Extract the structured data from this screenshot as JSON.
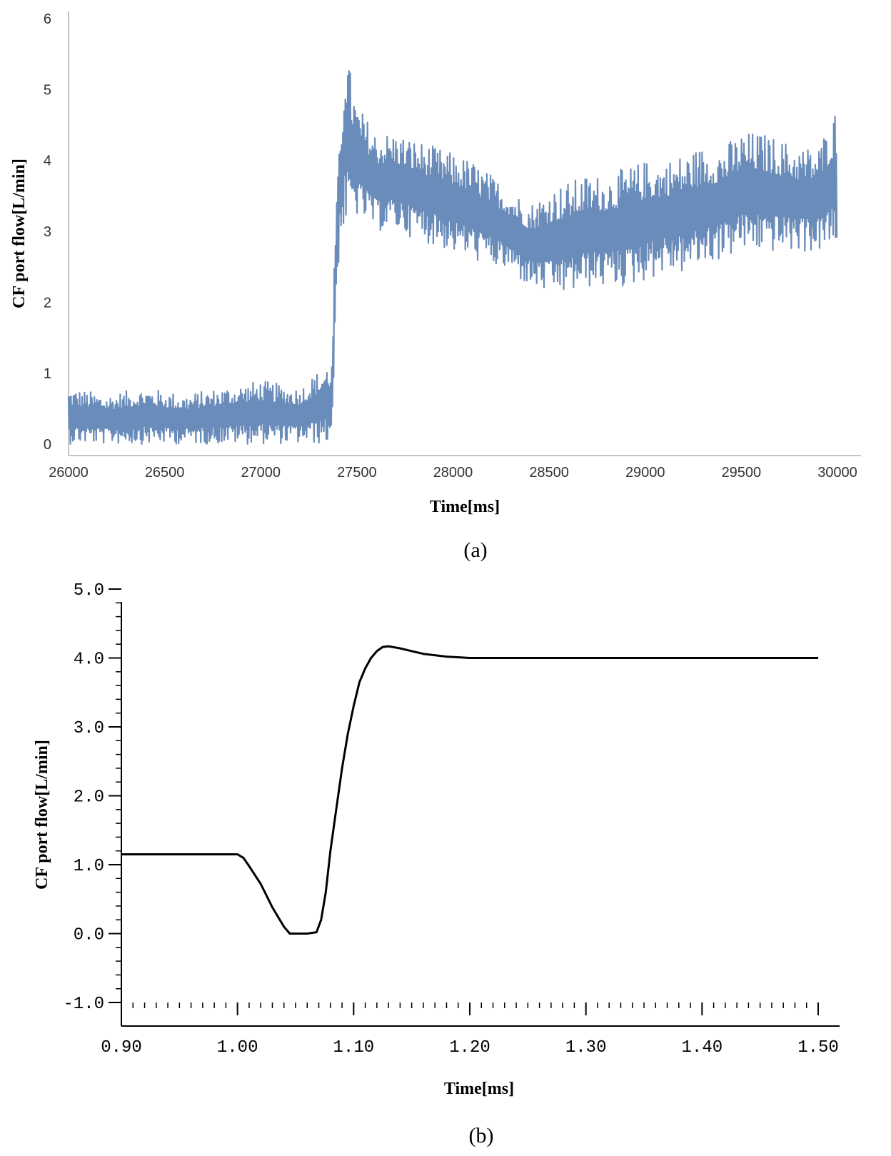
{
  "chart_data": [
    {
      "panel": "a",
      "type": "line",
      "caption": "(a)",
      "xlabel": "Time[ms]",
      "ylabel": "CF port flow[L/min]",
      "xlim": [
        26000,
        30000
      ],
      "ylim": [
        0,
        6
      ],
      "xticks": [
        26000,
        26500,
        27000,
        27500,
        28000,
        28500,
        29000,
        29500,
        30000
      ],
      "yticks": [
        0,
        1,
        2,
        3,
        4,
        5,
        6
      ],
      "grid": false,
      "color": "#6a8cba",
      "series": [
        {
          "description_points": "envelope of a densely oscillating signal; low = lower edge, high = upper edge",
          "x": [
            26000,
            26200,
            26400,
            26600,
            26800,
            27000,
            27200,
            27370,
            27390,
            27410,
            27440,
            27470,
            27500,
            27600,
            27700,
            27800,
            27900,
            28000,
            28100,
            28200,
            28300,
            28400,
            28500,
            28600,
            28700,
            28800,
            28900,
            29000,
            29100,
            29200,
            29300,
            29400,
            29500,
            29600,
            29700,
            29800,
            29900,
            30000
          ],
          "low": [
            0,
            0,
            0,
            0,
            0,
            0,
            0,
            0,
            1.8,
            2.8,
            3.0,
            3.1,
            3.2,
            3.0,
            3.0,
            2.9,
            2.8,
            2.7,
            2.6,
            2.5,
            2.4,
            2.2,
            2.1,
            2.1,
            2.2,
            2.2,
            2.2,
            2.3,
            2.4,
            2.4,
            2.5,
            2.6,
            2.7,
            2.7,
            2.7,
            2.7,
            2.7,
            2.7
          ],
          "high": [
            0.8,
            0.7,
            0.8,
            0.7,
            0.8,
            0.9,
            0.8,
            1.2,
            3.3,
            4.2,
            5.7,
            5.2,
            4.8,
            4.4,
            4.4,
            4.3,
            4.2,
            4.1,
            4.0,
            3.8,
            3.6,
            3.4,
            3.6,
            3.7,
            3.8,
            3.8,
            3.9,
            4.0,
            4.0,
            4.1,
            4.2,
            4.2,
            4.4,
            4.4,
            4.3,
            4.2,
            4.2,
            4.8
          ]
        }
      ]
    },
    {
      "panel": "b",
      "type": "line",
      "caption": "(b)",
      "xlabel": "Time[ms]",
      "ylabel": "CF port flow[L/min]",
      "xlim": [
        0.9,
        1.5
      ],
      "ylim": [
        -1.0,
        5.0
      ],
      "xticks": [
        "0.90",
        "1.00",
        "1.10",
        "1.20",
        "1.30",
        "1.40",
        "1.50"
      ],
      "yticks": [
        "-1.0",
        "0.0",
        "1.0",
        "2.0",
        "3.0",
        "4.0",
        "5.0"
      ],
      "grid": false,
      "color": "#000000",
      "series": [
        {
          "x": [
            0.9,
            1.0,
            1.005,
            1.01,
            1.02,
            1.03,
            1.04,
            1.045,
            1.05,
            1.06,
            1.068,
            1.072,
            1.076,
            1.08,
            1.085,
            1.09,
            1.095,
            1.1,
            1.105,
            1.11,
            1.115,
            1.12,
            1.125,
            1.13,
            1.14,
            1.15,
            1.16,
            1.18,
            1.2,
            1.3,
            1.4,
            1.5
          ],
          "y": [
            1.15,
            1.15,
            1.1,
            0.98,
            0.72,
            0.38,
            0.1,
            0.0,
            0.0,
            0.0,
            0.02,
            0.2,
            0.6,
            1.2,
            1.8,
            2.4,
            2.9,
            3.3,
            3.65,
            3.85,
            4.0,
            4.1,
            4.16,
            4.17,
            4.14,
            4.1,
            4.06,
            4.02,
            4.0,
            4.0,
            4.0,
            4.0
          ]
        }
      ]
    }
  ]
}
